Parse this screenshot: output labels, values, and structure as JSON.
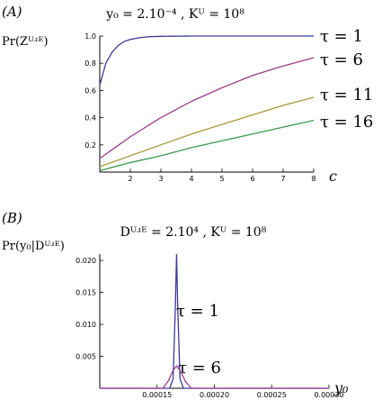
{
  "chart_data": [
    {
      "type": "line",
      "panel_label": "(A)",
      "title": "y₀ = 2.10⁻⁴ ,  Kᵁ = 10⁸",
      "ylabel": "Pr(Zᵁʴᴱ)",
      "xlabel": "c",
      "xlim": [
        1,
        8
      ],
      "ylim": [
        0,
        1.0
      ],
      "xticks": [
        2,
        3,
        4,
        5,
        6,
        7,
        8
      ],
      "yticks": [
        0.2,
        0.4,
        0.6,
        0.8,
        1.0
      ],
      "ytick_labels": [
        "0.2",
        "0.4",
        "0.6",
        "0.8",
        "1.0"
      ],
      "series": [
        {
          "name": "τ = 1",
          "color": "#3b3b9c",
          "x": [
            1.0,
            1.2,
            1.4,
            1.6,
            1.8,
            2.0,
            2.3,
            2.6,
            3.0,
            3.5,
            4.0,
            5.0,
            6.0,
            7.0,
            8.0
          ],
          "y": [
            0.64,
            0.8,
            0.88,
            0.93,
            0.96,
            0.975,
            0.988,
            0.995,
            0.998,
            0.999,
            1.0,
            1.0,
            1.0,
            1.0,
            1.0
          ]
        },
        {
          "name": "τ = 6",
          "color": "#9c3b8a",
          "x": [
            1,
            2,
            3,
            4,
            5,
            6,
            7,
            8
          ],
          "y": [
            0.1,
            0.26,
            0.4,
            0.52,
            0.62,
            0.71,
            0.78,
            0.84
          ]
        },
        {
          "name": "τ = 11",
          "color": "#a59a3a",
          "x": [
            1,
            2,
            3,
            4,
            5,
            6,
            7,
            8
          ],
          "y": [
            0.04,
            0.12,
            0.2,
            0.28,
            0.35,
            0.42,
            0.49,
            0.55
          ]
        },
        {
          "name": "τ = 16",
          "color": "#3a9a4a",
          "x": [
            1,
            2,
            3,
            4,
            5,
            6,
            7,
            8
          ],
          "y": [
            0.01,
            0.07,
            0.12,
            0.18,
            0.23,
            0.28,
            0.33,
            0.38
          ]
        }
      ]
    },
    {
      "type": "line",
      "panel_label": "(B)",
      "title": "Dᵁʴᴱ = 2.10⁴ ,  Kᵁ = 10⁸",
      "ylabel": "Pr(y₀|Dᵁʴᴱ)",
      "xlabel": "y₀",
      "xlim": [
        0.0001,
        0.0003
      ],
      "ylim": [
        0,
        0.021
      ],
      "xticks": [
        0.00015,
        0.0002,
        0.00025,
        0.0003
      ],
      "xtick_labels": [
        "0.00015",
        "0.00020",
        "0.00025",
        "0.00030"
      ],
      "yticks": [
        0.005,
        0.01,
        0.015,
        0.02
      ],
      "ytick_labels": [
        "0.005",
        "0.010",
        "0.015",
        "0.020"
      ],
      "series": [
        {
          "name": "τ = 1",
          "color": "#3b3b9c",
          "x": [
            0.0001,
            0.000161,
            0.000164,
            0.000166,
            0.000167,
            0.000168,
            0.00017,
            0.000173,
            0.0003
          ],
          "y": [
            0,
            0,
            0.0015,
            0.013,
            0.021,
            0.013,
            0.0015,
            0,
            0
          ]
        },
        {
          "name": "τ = 6",
          "color": "#9c3b8a",
          "x": [
            0.0001,
            0.000155,
            0.00016,
            0.000164,
            0.000167,
            0.00017,
            0.000175,
            0.00018,
            0.0003
          ],
          "y": [
            0,
            0,
            0.0012,
            0.0028,
            0.0035,
            0.0028,
            0.001,
            0,
            0
          ]
        }
      ]
    }
  ]
}
